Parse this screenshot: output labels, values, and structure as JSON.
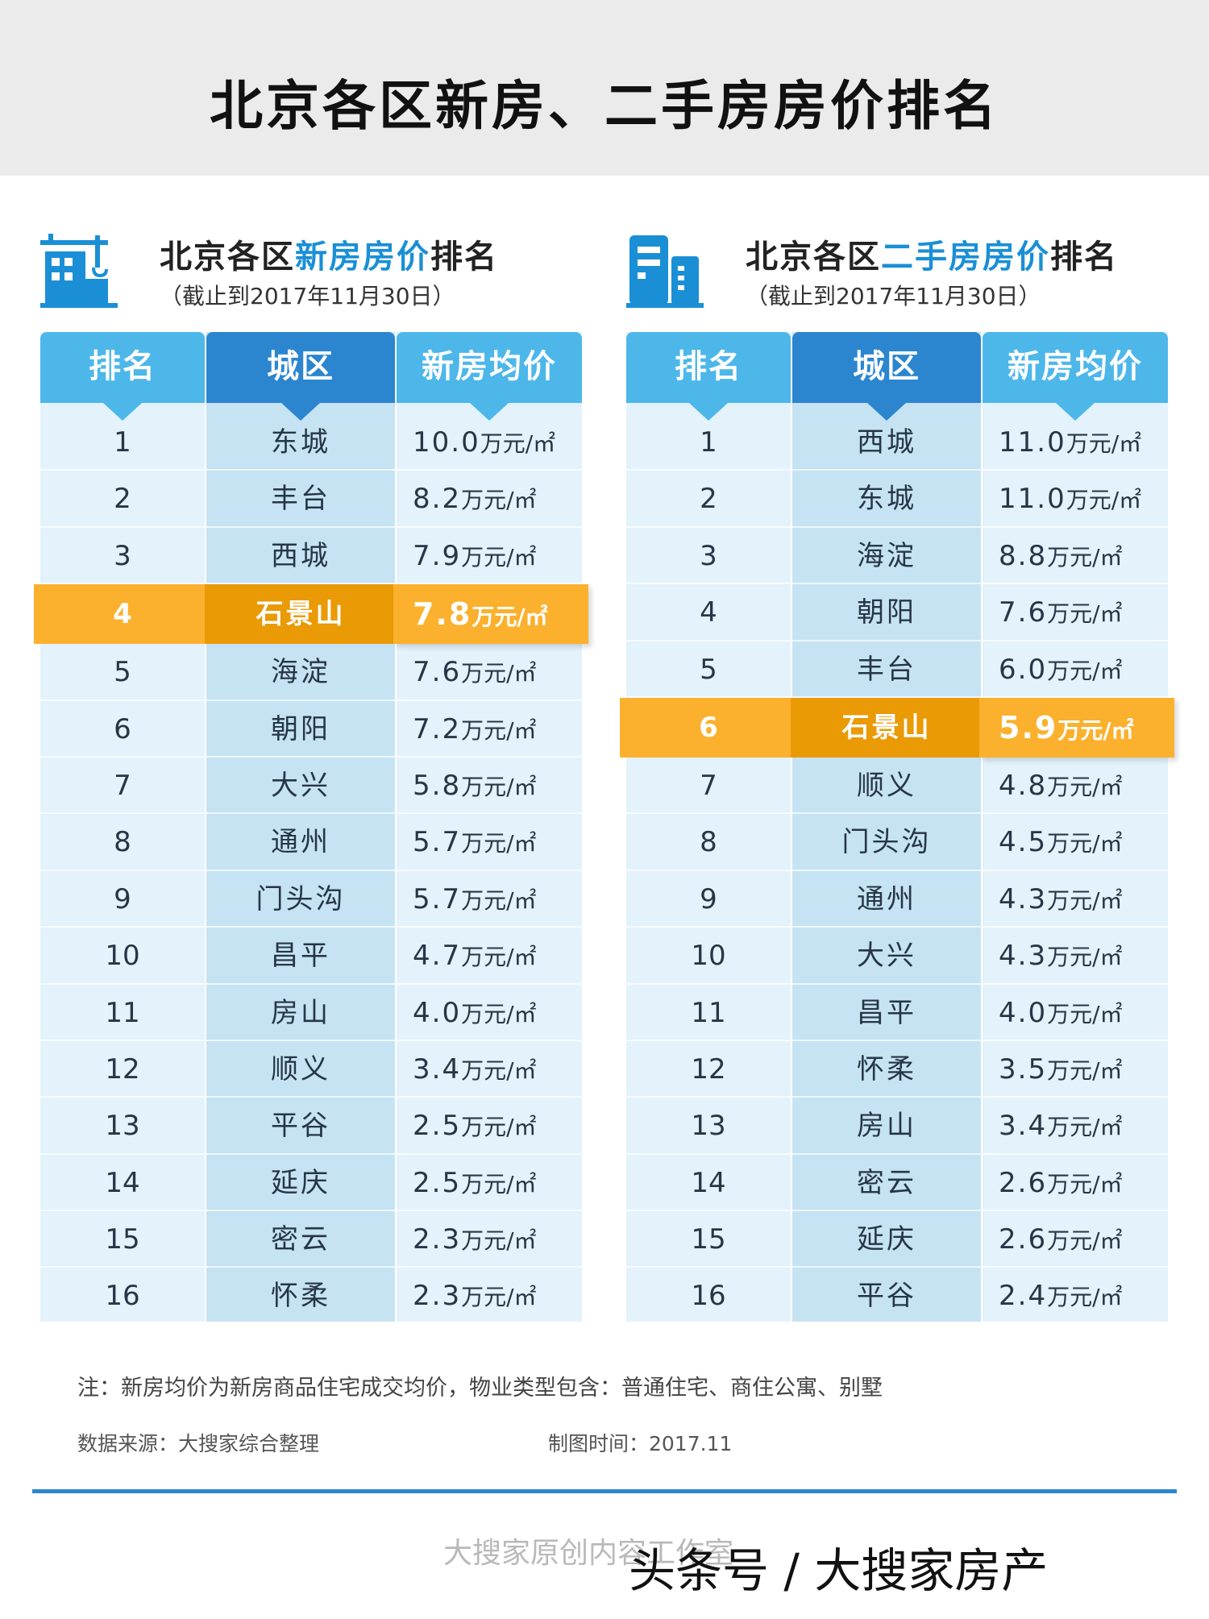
{
  "title": "北京各区新房、二手房房价排名",
  "colors": {
    "accent": "#1a8fd6",
    "header_light": "#4db7ea",
    "header_dark": "#2b86cf",
    "highlight": "#fbb12e",
    "highlight_dark": "#e99a05"
  },
  "new_panel": {
    "icon": "crane-building-icon",
    "title_pre": "北京各区",
    "title_hl": "新房房价",
    "title_post": "排名",
    "subtitle": "（截止到2017年11月30日）",
    "headers": {
      "rank": "排名",
      "district": "城区",
      "price": "新房均价"
    },
    "unit": "万元/㎡",
    "highlight_rank": 4,
    "rows": [
      {
        "rank": "1",
        "district": "东城",
        "price": "10.0"
      },
      {
        "rank": "2",
        "district": "丰台",
        "price": "8.2"
      },
      {
        "rank": "3",
        "district": "西城",
        "price": "7.9"
      },
      {
        "rank": "4",
        "district": "石景山",
        "price": "7.8"
      },
      {
        "rank": "5",
        "district": "海淀",
        "price": "7.6"
      },
      {
        "rank": "6",
        "district": "朝阳",
        "price": "7.2"
      },
      {
        "rank": "7",
        "district": "大兴",
        "price": "5.8"
      },
      {
        "rank": "8",
        "district": "通州",
        "price": "5.7"
      },
      {
        "rank": "9",
        "district": "门头沟",
        "price": "5.7"
      },
      {
        "rank": "10",
        "district": "昌平",
        "price": "4.7"
      },
      {
        "rank": "11",
        "district": "房山",
        "price": "4.0"
      },
      {
        "rank": "12",
        "district": "顺义",
        "price": "3.4"
      },
      {
        "rank": "13",
        "district": "平谷",
        "price": "2.5"
      },
      {
        "rank": "14",
        "district": "延庆",
        "price": "2.5"
      },
      {
        "rank": "15",
        "district": "密云",
        "price": "2.3"
      },
      {
        "rank": "16",
        "district": "怀柔",
        "price": "2.3"
      }
    ]
  },
  "second_panel": {
    "icon": "office-building-icon",
    "title_pre": "北京各区",
    "title_hl": "二手房房价",
    "title_post": "排名",
    "subtitle": "（截止到2017年11月30日）",
    "headers": {
      "rank": "排名",
      "district": "城区",
      "price": "新房均价"
    },
    "unit": "万元/㎡",
    "highlight_rank": 6,
    "rows": [
      {
        "rank": "1",
        "district": "西城",
        "price": "11.0"
      },
      {
        "rank": "2",
        "district": "东城",
        "price": "11.0"
      },
      {
        "rank": "3",
        "district": "海淀",
        "price": "8.8"
      },
      {
        "rank": "4",
        "district": "朝阳",
        "price": "7.6"
      },
      {
        "rank": "5",
        "district": "丰台",
        "price": "6.0"
      },
      {
        "rank": "6",
        "district": "石景山",
        "price": "5.9"
      },
      {
        "rank": "7",
        "district": "顺义",
        "price": "4.8"
      },
      {
        "rank": "8",
        "district": "门头沟",
        "price": "4.5"
      },
      {
        "rank": "9",
        "district": "通州",
        "price": "4.3"
      },
      {
        "rank": "10",
        "district": "大兴",
        "price": "4.3"
      },
      {
        "rank": "11",
        "district": "昌平",
        "price": "4.0"
      },
      {
        "rank": "12",
        "district": "怀柔",
        "price": "3.5"
      },
      {
        "rank": "13",
        "district": "房山",
        "price": "3.4"
      },
      {
        "rank": "14",
        "district": "密云",
        "price": "2.6"
      },
      {
        "rank": "15",
        "district": "延庆",
        "price": "2.6"
      },
      {
        "rank": "16",
        "district": "平谷",
        "price": "2.4"
      }
    ]
  },
  "note": "注：新房均价为新房商品住宅成交均价，物业类型包含：普通住宅、商住公寓、别墅",
  "source": "数据来源：大搜家综合整理",
  "made_time": "制图时间：2017.11",
  "footer_left": "大搜家原创内容工作室",
  "footer_right": "头条号 / 大搜家房产",
  "chart_data": [
    {
      "type": "table",
      "title": "北京各区新房房价排名",
      "subtitle": "（截止到2017年11月30日）",
      "columns": [
        "排名",
        "城区",
        "新房均价"
      ],
      "unit": "万元/㎡",
      "categories": [
        "东城",
        "丰台",
        "西城",
        "石景山",
        "海淀",
        "朝阳",
        "大兴",
        "通州",
        "门头沟",
        "昌平",
        "房山",
        "顺义",
        "平谷",
        "延庆",
        "密云",
        "怀柔"
      ],
      "values": [
        10.0,
        8.2,
        7.9,
        7.8,
        7.6,
        7.2,
        5.8,
        5.7,
        5.7,
        4.7,
        4.0,
        3.4,
        2.5,
        2.5,
        2.3,
        2.3
      ]
    },
    {
      "type": "table",
      "title": "北京各区二手房房价排名",
      "subtitle": "（截止到2017年11月30日）",
      "columns": [
        "排名",
        "城区",
        "新房均价"
      ],
      "unit": "万元/㎡",
      "categories": [
        "西城",
        "东城",
        "海淀",
        "朝阳",
        "丰台",
        "石景山",
        "顺义",
        "门头沟",
        "通州",
        "大兴",
        "昌平",
        "怀柔",
        "房山",
        "密云",
        "延庆",
        "平谷"
      ],
      "values": [
        11.0,
        11.0,
        8.8,
        7.6,
        6.0,
        5.9,
        4.8,
        4.5,
        4.3,
        4.3,
        4.0,
        3.5,
        3.4,
        2.6,
        2.6,
        2.4
      ]
    }
  ]
}
